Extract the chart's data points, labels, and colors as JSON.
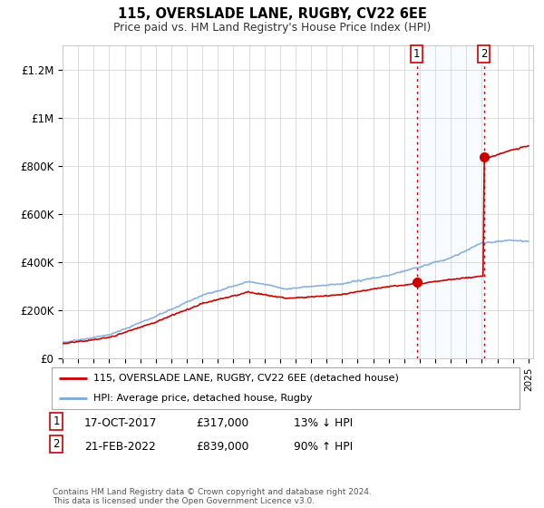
{
  "title": "115, OVERSLADE LANE, RUGBY, CV22 6EE",
  "subtitle": "Price paid vs. HM Land Registry's House Price Index (HPI)",
  "legend_line1": "115, OVERSLADE LANE, RUGBY, CV22 6EE (detached house)",
  "legend_line2": "HPI: Average price, detached house, Rugby",
  "transaction1_date": "17-OCT-2017",
  "transaction1_price": "£317,000",
  "transaction1_hpi": "13% ↓ HPI",
  "transaction2_date": "21-FEB-2022",
  "transaction2_price": "£839,000",
  "transaction2_hpi": "90% ↑ HPI",
  "footnote": "Contains HM Land Registry data © Crown copyright and database right 2024.\nThis data is licensed under the Open Government Licence v3.0.",
  "background_color": "#ffffff",
  "hpi_line_color": "#7aaadd",
  "price_line_color": "#cc0000",
  "vline_color": "#cc0000",
  "shade_color": "#ddeeff",
  "ylim": [
    0,
    1300000
  ],
  "yticks": [
    0,
    200000,
    400000,
    600000,
    800000,
    1000000,
    1200000
  ],
  "ytick_labels": [
    "£0",
    "£200K",
    "£400K",
    "£600K",
    "£800K",
    "£1M",
    "£1.2M"
  ],
  "transaction1_year": 2017.8,
  "transaction2_year": 2022.12,
  "transaction1_price_val": 317000,
  "transaction2_price_val": 839000
}
